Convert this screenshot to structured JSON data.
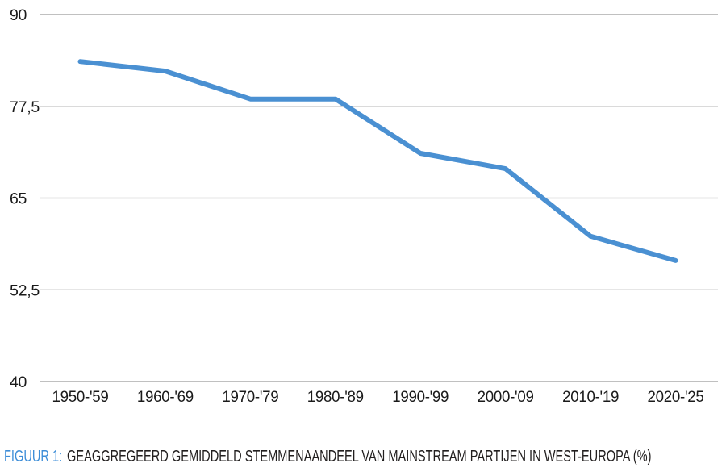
{
  "figure": {
    "caption_prefix": "FIGUUR 1:",
    "caption_text": "GEAGGREGEERD GEMIDDELD STEMMENAANDEEL VAN MAINSTREAM PARTIJEN IN WEST-EUROPA (%)",
    "caption_prefix_color": "#3e8ed8",
    "caption_text_color": "#221f1f"
  },
  "chart_data": {
    "type": "line",
    "title": "FIGUUR 1: GEAGGREGEERD GEMIDDELD STEMMENAANDEEL VAN MAINSTREAM PARTIJEN IN WEST-EUROPA (%)",
    "categories": [
      "1950-'59",
      "1960-'69",
      "1970-'79",
      "1980-'89",
      "1990-'99",
      "2000-'09",
      "2010-'19",
      "2020-'25"
    ],
    "values": [
      83.6,
      82.3,
      78.5,
      78.5,
      71.1,
      69.0,
      59.8,
      56.5
    ],
    "y_ticks": [
      90,
      77.5,
      65,
      52.5,
      40
    ],
    "y_tick_labels": [
      "90",
      "77,5",
      "65",
      "52,5",
      "40"
    ],
    "ylim": [
      40,
      90
    ],
    "xlabel": "",
    "ylabel": "",
    "grid": "horizontal gridlines only, no vertical axis line",
    "legend_position": "none",
    "line_color": "#4a90d2",
    "grid_color": "#9b9b9b",
    "axis_text_color": "#1a1a1a"
  }
}
